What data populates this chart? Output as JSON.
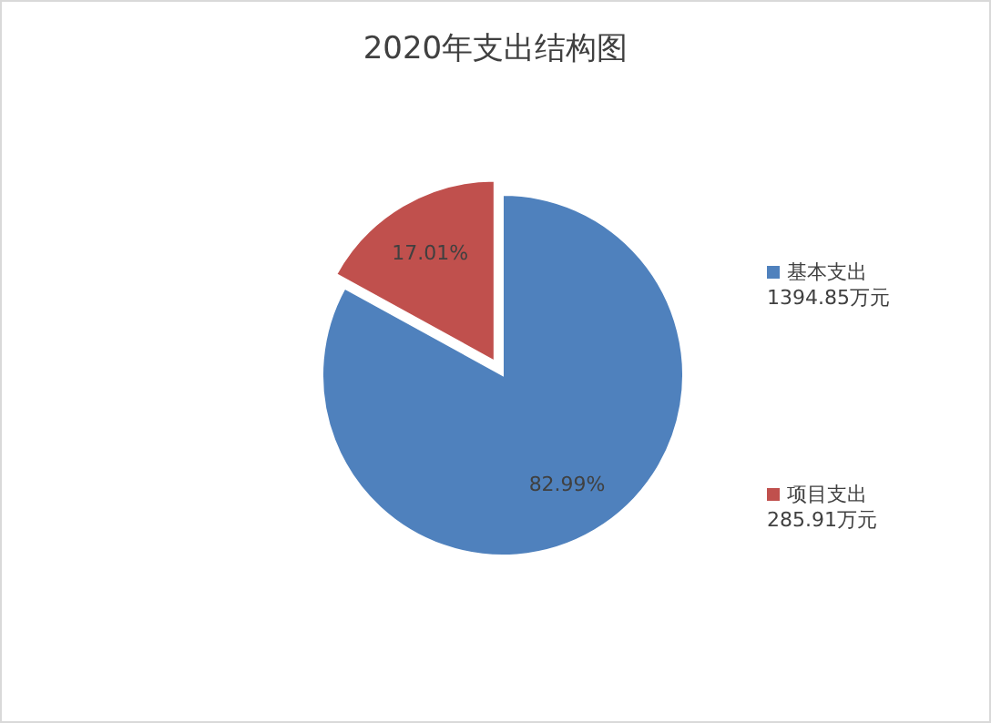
{
  "chart_data": {
    "type": "pie",
    "title": "2020年支出结构图",
    "categories": [
      "基本支出 1394.85万元",
      "项目支出 285.91万元"
    ],
    "values": [
      82.99,
      17.01
    ],
    "value_labels": [
      "82.99%",
      "17.01%"
    ],
    "colors": [
      "#4f81bd",
      "#c0504d"
    ],
    "legend": "right"
  }
}
